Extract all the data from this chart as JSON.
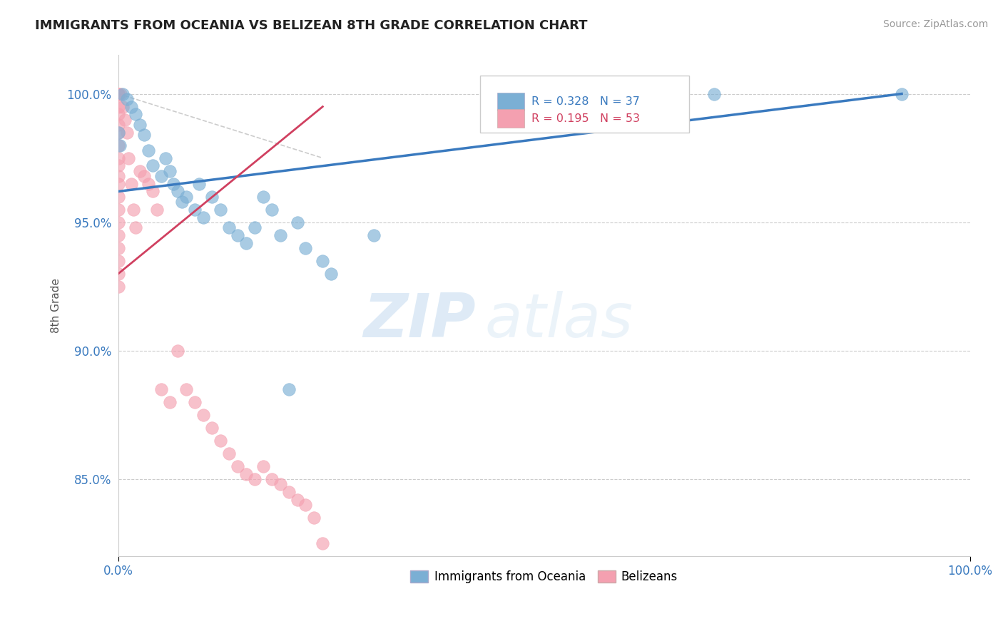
{
  "title": "IMMIGRANTS FROM OCEANIA VS BELIZEAN 8TH GRADE CORRELATION CHART",
  "source_text": "Source: ZipAtlas.com",
  "ylabel": "8th Grade",
  "xlim": [
    0.0,
    100.0
  ],
  "ylim": [
    82.0,
    101.5
  ],
  "yticks": [
    85.0,
    90.0,
    95.0,
    100.0
  ],
  "ytick_labels": [
    "85.0%",
    "90.0%",
    "95.0%",
    "100.0%"
  ],
  "blue_color": "#7bafd4",
  "pink_color": "#f4a0b0",
  "blue_edge_color": "#5a9abf",
  "pink_edge_color": "#e07090",
  "blue_line_color": "#3a7abf",
  "pink_line_color": "#d04060",
  "R_blue": 0.328,
  "N_blue": 37,
  "R_pink": 0.195,
  "N_pink": 53,
  "watermark_zip": "ZIP",
  "watermark_atlas": "atlas",
  "blue_scatter_x": [
    0.5,
    1.0,
    1.5,
    2.0,
    2.5,
    3.0,
    3.5,
    4.0,
    5.0,
    5.5,
    6.0,
    6.5,
    7.0,
    7.5,
    8.0,
    9.0,
    9.5,
    10.0,
    11.0,
    12.0,
    13.0,
    14.0,
    15.0,
    16.0,
    17.0,
    18.0,
    19.0,
    20.0,
    21.0,
    22.0,
    24.0,
    25.0,
    30.0,
    70.0,
    92.0,
    0.0,
    0.2
  ],
  "blue_scatter_y": [
    100.0,
    99.8,
    99.5,
    99.2,
    98.8,
    98.4,
    97.8,
    97.2,
    96.8,
    97.5,
    97.0,
    96.5,
    96.2,
    95.8,
    96.0,
    95.5,
    96.5,
    95.2,
    96.0,
    95.5,
    94.8,
    94.5,
    94.2,
    94.8,
    96.0,
    95.5,
    94.5,
    88.5,
    95.0,
    94.0,
    93.5,
    93.0,
    94.5,
    100.0,
    100.0,
    98.5,
    98.0
  ],
  "pink_scatter_x": [
    0.0,
    0.0,
    0.0,
    0.0,
    0.0,
    0.0,
    0.0,
    0.0,
    0.0,
    0.0,
    0.0,
    0.0,
    0.0,
    0.0,
    0.0,
    0.0,
    0.0,
    0.0,
    0.0,
    0.0,
    0.3,
    0.5,
    0.8,
    1.0,
    1.2,
    1.5,
    1.8,
    2.0,
    2.5,
    3.0,
    3.5,
    4.0,
    4.5,
    5.0,
    6.0,
    7.0,
    8.0,
    9.0,
    10.0,
    11.0,
    12.0,
    13.0,
    14.0,
    15.0,
    16.0,
    17.0,
    18.0,
    19.0,
    20.0,
    21.0,
    22.0,
    23.0,
    24.0
  ],
  "pink_scatter_y": [
    100.0,
    100.0,
    100.0,
    99.5,
    99.2,
    98.8,
    98.5,
    98.0,
    97.5,
    97.2,
    96.8,
    96.5,
    96.0,
    95.5,
    95.0,
    94.5,
    94.0,
    93.5,
    93.0,
    92.5,
    100.0,
    99.5,
    99.0,
    98.5,
    97.5,
    96.5,
    95.5,
    94.8,
    97.0,
    96.8,
    96.5,
    96.2,
    95.5,
    88.5,
    88.0,
    90.0,
    88.5,
    88.0,
    87.5,
    87.0,
    86.5,
    86.0,
    85.5,
    85.2,
    85.0,
    85.5,
    85.0,
    84.8,
    84.5,
    84.2,
    84.0,
    83.5,
    82.5
  ],
  "blue_line_x0": 0.0,
  "blue_line_x1": 92.0,
  "blue_line_y0": 96.2,
  "blue_line_y1": 100.0,
  "pink_line_x0": 0.0,
  "pink_line_x1": 24.0,
  "pink_line_y0": 93.0,
  "pink_line_y1": 99.5,
  "ref_line_x0": 0.0,
  "ref_line_x1": 24.0,
  "ref_line_y0": 100.0,
  "ref_line_y1": 97.5
}
